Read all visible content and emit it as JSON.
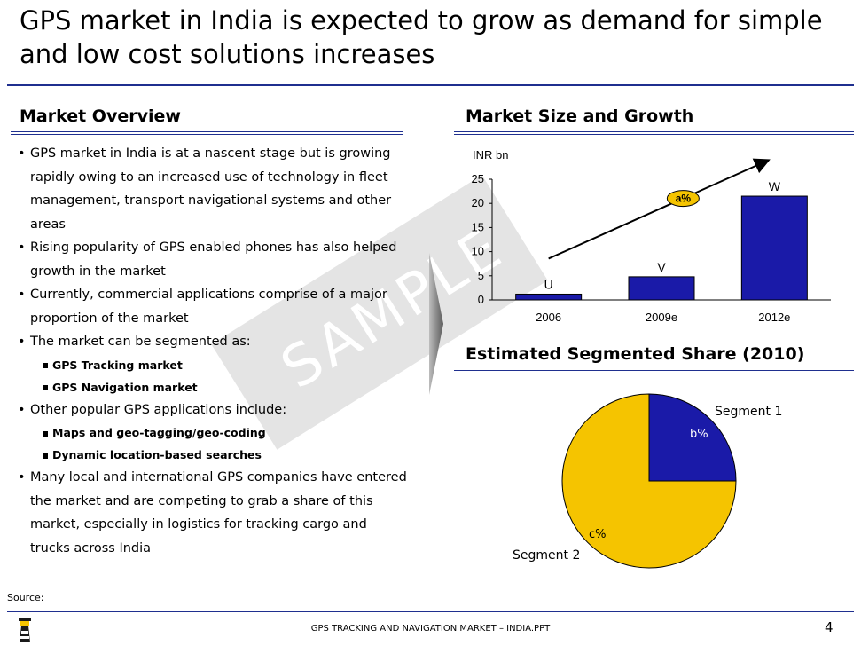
{
  "title": "GPS market in India is expected to grow as demand for simple and low cost solutions increases",
  "left": {
    "heading": "Market Overview",
    "bullets": [
      "GPS market in India is at a nascent stage but is growing rapidly owing to an increased use of technology in fleet management, transport navigational systems and other areas",
      "Rising popularity of GPS enabled phones has also helped growth in the market",
      "Currently, commercial applications comprise of a major proportion of the market",
      "The market can be segmented as:",
      "Other popular GPS applications include:",
      "Many local and international GPS companies have entered the market and are competing to grab a share of this market, especially in logistics for tracking cargo and trucks across India"
    ],
    "segments": [
      "GPS Tracking market",
      "GPS Navigation market"
    ],
    "applications": [
      "Maps and geo-tagging/geo-coding",
      "Dynamic location-based searches"
    ]
  },
  "watermark": "SAMPLE",
  "right": {
    "size_heading": "Market Size and Growth",
    "share_heading": "Estimated Segmented Share (2010)"
  },
  "chart_data": [
    {
      "type": "bar",
      "title": "Market Size and Growth",
      "unit_label": "INR bn",
      "categories": [
        "2006",
        "2009e",
        "2012e"
      ],
      "values": [
        1.2,
        4.8,
        21.5
      ],
      "data_labels": [
        "U",
        "V",
        "W"
      ],
      "yticks": [
        0,
        5,
        10,
        15,
        20,
        25
      ],
      "ylim": [
        0,
        25
      ],
      "growth_label": "a%",
      "color": "#1a1aa8"
    },
    {
      "type": "pie",
      "title": "Estimated Segmented Share (2010)",
      "labels": [
        "Segment 1",
        "Segment 2"
      ],
      "values": [
        25,
        75
      ],
      "value_labels": [
        "b%",
        "c%"
      ],
      "colors": [
        "#1a1aa8",
        "#f5c400"
      ]
    }
  ],
  "footer": {
    "source": "Source:",
    "center": "GPS TRACKING AND NAVIGATION MARKET – INDIA.PPT",
    "page": "4"
  },
  "colors": {
    "accent": "#1f2f8f"
  }
}
